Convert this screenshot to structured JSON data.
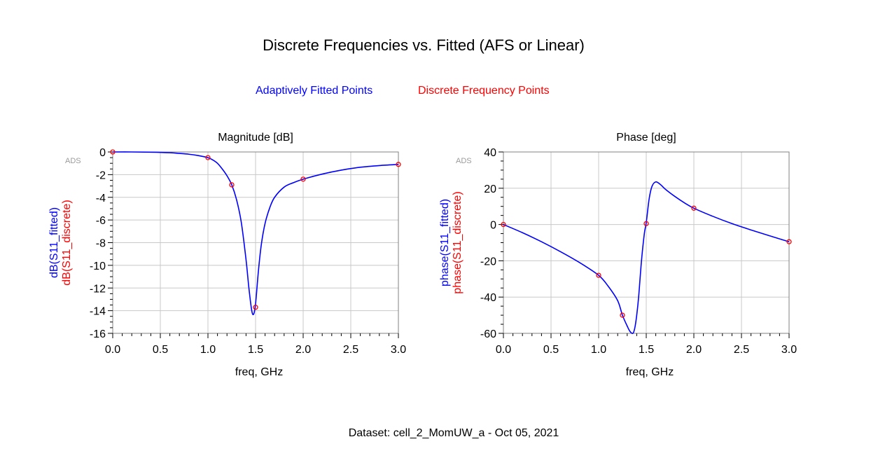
{
  "title": "Discrete Frequencies vs. Fitted (AFS or Linear)",
  "legend": {
    "fitted_label": "Adaptively Fitted Points",
    "fitted_color": "#0000ff",
    "discrete_label": "Discrete Frequency Points",
    "discrete_color": "#ff0000"
  },
  "footer": "Dataset: cell_2_MomUW_a - Oct 05, 2021",
  "chart_data": [
    {
      "type": "line",
      "title": "Magnitude [dB]",
      "watermark": "ADS",
      "xlabel": "freq, GHz",
      "ylabel_fitted": "dB(S11_fitted)",
      "ylabel_discrete": "dB(S11_discrete)",
      "xlim": [
        0.0,
        3.0
      ],
      "ylim": [
        -16,
        0
      ],
      "x_ticks": [
        "0.0",
        "0.5",
        "1.0",
        "1.5",
        "2.0",
        "2.5",
        "3.0"
      ],
      "y_ticks": [
        "0",
        "-2",
        "-4",
        "-6",
        "-8",
        "-10",
        "-12",
        "-14",
        "-16"
      ],
      "grid": true,
      "series": [
        {
          "name": "dB(S11_fitted)",
          "color": "#0000ff",
          "x": [
            0.0,
            0.2,
            0.4,
            0.6,
            0.7,
            0.8,
            0.9,
            1.0,
            1.05,
            1.1,
            1.15,
            1.2,
            1.25,
            1.3,
            1.35,
            1.4,
            1.43,
            1.46,
            1.48,
            1.5,
            1.53,
            1.56,
            1.6,
            1.65,
            1.7,
            1.8,
            1.9,
            2.0,
            2.2,
            2.4,
            2.6,
            2.8,
            3.0
          ],
          "y": [
            0.0,
            0.0,
            -0.02,
            -0.07,
            -0.13,
            -0.2,
            -0.32,
            -0.5,
            -0.7,
            -1.0,
            -1.5,
            -2.1,
            -2.9,
            -4.2,
            -6.2,
            -9.5,
            -12.0,
            -14.0,
            -14.3,
            -13.4,
            -10.5,
            -8.2,
            -6.3,
            -4.9,
            -4.0,
            -3.1,
            -2.7,
            -2.4,
            -1.95,
            -1.6,
            -1.35,
            -1.2,
            -1.1
          ]
        },
        {
          "name": "dB(S11_discrete)",
          "color": "#ff0000",
          "x": [
            0.0,
            1.0,
            1.25,
            1.5,
            2.0,
            3.0
          ],
          "y": [
            0.0,
            -0.5,
            -2.9,
            -13.7,
            -2.4,
            -1.1
          ]
        }
      ]
    },
    {
      "type": "line",
      "title": "Phase [deg]",
      "watermark": "ADS",
      "xlabel": "freq, GHz",
      "ylabel_fitted": "phase(S11_fitted)",
      "ylabel_discrete": "phase(S11_discrete)",
      "xlim": [
        0.0,
        3.0
      ],
      "ylim": [
        -60,
        40
      ],
      "x_ticks": [
        "0.0",
        "0.5",
        "1.0",
        "1.5",
        "2.0",
        "2.5",
        "3.0"
      ],
      "y_ticks": [
        "40",
        "20",
        "0",
        "-20",
        "-40",
        "-60"
      ],
      "grid": true,
      "series": [
        {
          "name": "phase(S11_fitted)",
          "color": "#0000ff",
          "x": [
            0.0,
            0.2,
            0.4,
            0.6,
            0.8,
            1.0,
            1.1,
            1.2,
            1.25,
            1.3,
            1.33,
            1.36,
            1.38,
            1.4,
            1.42,
            1.45,
            1.48,
            1.5,
            1.53,
            1.56,
            1.6,
            1.65,
            1.7,
            1.8,
            1.9,
            2.0,
            2.2,
            2.4,
            2.6,
            2.8,
            3.0
          ],
          "y": [
            0.0,
            -4.5,
            -9.5,
            -15.0,
            -21.0,
            -28.0,
            -34.0,
            -42.0,
            -50.0,
            -56.0,
            -59.0,
            -60.0,
            -57.0,
            -50.0,
            -40.0,
            -20.0,
            -5.0,
            1.0,
            14.0,
            21.0,
            23.5,
            22.0,
            19.5,
            15.5,
            12.0,
            9.0,
            4.5,
            0.5,
            -3.0,
            -6.3,
            -9.5
          ]
        },
        {
          "name": "phase(S11_discrete)",
          "color": "#ff0000",
          "x": [
            0.0,
            1.0,
            1.25,
            1.5,
            2.0,
            3.0
          ],
          "y": [
            0.0,
            -28.0,
            -50.0,
            0.5,
            9.0,
            -9.5
          ]
        }
      ]
    }
  ]
}
